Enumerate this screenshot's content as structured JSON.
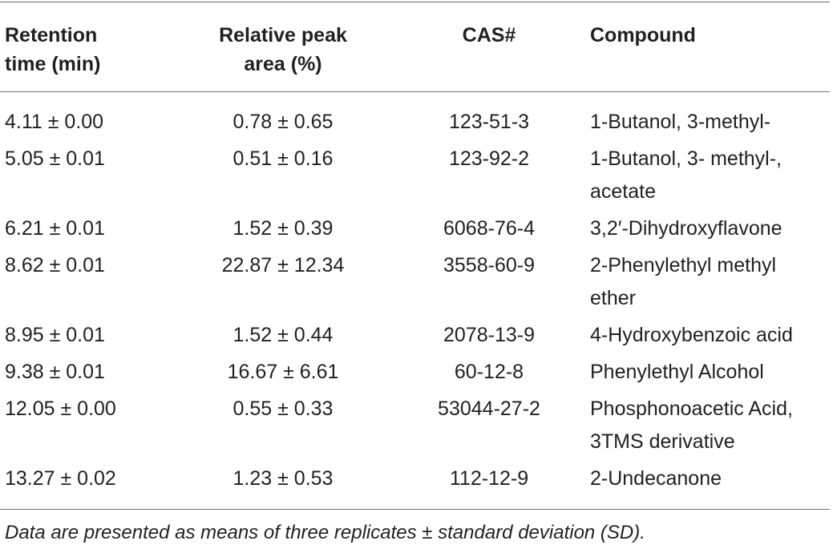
{
  "table": {
    "headers": [
      [
        "Retention",
        "time (min)"
      ],
      [
        "Relative peak",
        "area (%)"
      ],
      [
        "CAS#"
      ],
      [
        "Compound"
      ]
    ],
    "rows": [
      {
        "retention": "4.11 ± 0.00",
        "area": "0.78 ± 0.65",
        "cas": "123-51-3",
        "compound": [
          "1-Butanol, 3-methyl-"
        ]
      },
      {
        "retention": "5.05 ± 0.01",
        "area": "0.51 ± 0.16",
        "cas": "123-92-2",
        "compound": [
          "1-Butanol, 3- methyl-,",
          "acetate"
        ]
      },
      {
        "retention": "6.21 ± 0.01",
        "area": "1.52 ± 0.39",
        "cas": "6068-76-4",
        "compound": [
          "3,2′-Dihydroxyflavone"
        ]
      },
      {
        "retention": "8.62 ± 0.01",
        "area": "22.87 ± 12.34",
        "cas": "3558-60-9",
        "compound": [
          "2-Phenylethyl methyl",
          "ether"
        ]
      },
      {
        "retention": "8.95 ± 0.01",
        "area": "1.52 ± 0.44",
        "cas": "2078-13-9",
        "compound": [
          "4-Hydroxybenzoic acid"
        ]
      },
      {
        "retention": "9.38 ± 0.01",
        "area": "16.67 ± 6.61",
        "cas": "60-12-8",
        "compound": [
          "Phenylethyl Alcohol"
        ]
      },
      {
        "retention": "12.05 ± 0.00",
        "area": "0.55 ± 0.33",
        "cas": "53044-27-2",
        "compound": [
          "Phosphonoacetic Acid,",
          "3TMS derivative"
        ]
      },
      {
        "retention": "13.27 ± 0.02",
        "area": "1.23 ± 0.53",
        "cas": "112-12-9",
        "compound": [
          "2-Undecanone"
        ]
      }
    ]
  },
  "footnote": "Data are presented as means of three replicates ± standard deviation (SD)."
}
